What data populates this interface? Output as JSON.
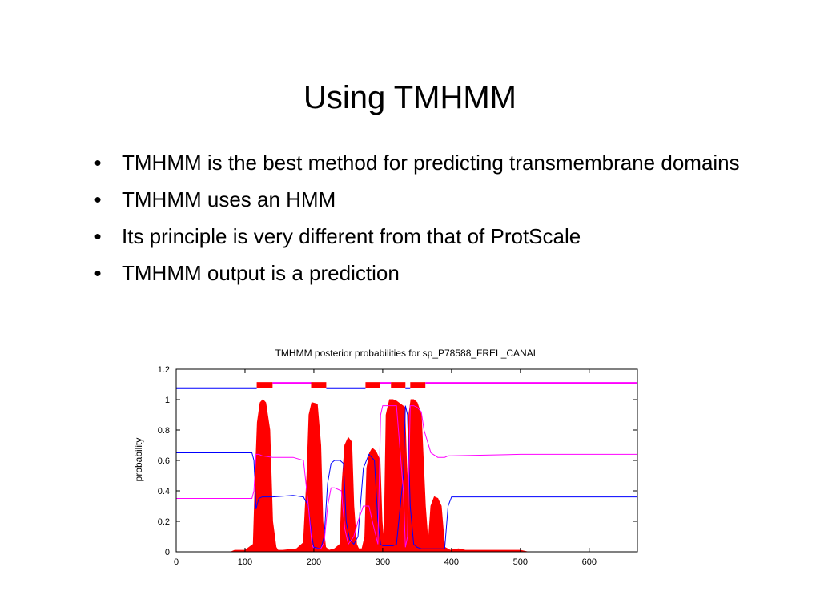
{
  "slide": {
    "title": "Using TMHMM",
    "bullets": [
      "TMHMM is the best method for predicting transmembrane domains",
      "TMHMM uses an HMM",
      "Its principle is very different from that of ProtScale",
      "TMHMM output is a prediction"
    ],
    "bullet_glyph": "•"
  },
  "chart_data": {
    "type": "line",
    "title": "TMHMM posterior probabilities for sp_P78588_FREL_CANAL",
    "xlabel": "",
    "ylabel": "probability",
    "xlim": [
      0,
      670
    ],
    "ylim": [
      0,
      1.2
    ],
    "xticks": [
      0,
      100,
      200,
      300,
      400,
      500,
      600
    ],
    "yticks": [
      0,
      0.2,
      0.4,
      0.6,
      0.8,
      1,
      1.2
    ],
    "grid": false,
    "colors": {
      "transmembrane": "#ff0000",
      "inside": "#0000ff",
      "outside": "#ff00ff",
      "frame": "#000000"
    },
    "series": [
      {
        "key": "transmembrane",
        "style": "filled",
        "x": [
          0,
          80,
          85,
          100,
          112,
          115,
          118,
          122,
          126,
          130,
          136,
          140,
          145,
          148,
          155,
          175,
          185,
          190,
          193,
          197,
          205,
          210,
          213,
          217,
          222,
          230,
          238,
          241,
          245,
          250,
          255,
          258,
          262,
          265,
          270,
          274,
          277,
          281,
          285,
          290,
          296,
          299,
          302,
          305,
          310,
          315,
          320,
          332,
          336,
          338,
          341,
          345,
          350,
          356,
          362,
          366,
          370,
          375,
          380,
          385,
          390,
          398,
          410,
          420,
          440,
          450,
          470,
          480,
          490,
          500,
          510,
          520,
          670
        ],
        "y": [
          0,
          0,
          0.01,
          0.01,
          0.05,
          0.5,
          0.85,
          0.98,
          1.0,
          0.98,
          0.8,
          0.2,
          0.03,
          0.01,
          0.01,
          0.02,
          0.06,
          0.5,
          0.9,
          0.98,
          0.97,
          0.7,
          0.2,
          0.03,
          0.01,
          0.02,
          0.05,
          0.45,
          0.7,
          0.75,
          0.72,
          0.3,
          0.05,
          0.02,
          0.02,
          0.1,
          0.55,
          0.65,
          0.68,
          0.66,
          0.6,
          0.2,
          0.05,
          0.9,
          1.0,
          1.0,
          0.99,
          0.95,
          0.4,
          0.9,
          1.0,
          1.0,
          0.98,
          0.9,
          0.3,
          0.05,
          0.3,
          0.36,
          0.35,
          0.3,
          0.03,
          0.01,
          0.02,
          0.01,
          0.01,
          0.01,
          0.01,
          0.01,
          0.01,
          0.01,
          0.0,
          0.0,
          0.0
        ]
      },
      {
        "key": "inside",
        "style": "line",
        "x": [
          0,
          110,
          113,
          116,
          120,
          125,
          140,
          170,
          185,
          192,
          197,
          200,
          210,
          215,
          220,
          225,
          230,
          238,
          243,
          247,
          252,
          258,
          264,
          272,
          280,
          284,
          288,
          293,
          297,
          300,
          305,
          315,
          320,
          330,
          333,
          336,
          340,
          345,
          350,
          356,
          362,
          370,
          380,
          390,
          395,
          400,
          670
        ],
        "y": [
          0.65,
          0.65,
          0.6,
          0.28,
          0.35,
          0.36,
          0.36,
          0.37,
          0.36,
          0.3,
          0.1,
          0.03,
          0.02,
          0.1,
          0.45,
          0.58,
          0.6,
          0.6,
          0.58,
          0.2,
          0.08,
          0.05,
          0.1,
          0.55,
          0.64,
          0.62,
          0.6,
          0.2,
          0.05,
          0.04,
          0.04,
          0.04,
          0.05,
          0.5,
          0.96,
          0.9,
          0.3,
          0.05,
          0.03,
          0.02,
          0.02,
          0.02,
          0.02,
          0.02,
          0.3,
          0.36,
          0.36
        ]
      },
      {
        "key": "outside",
        "style": "line",
        "x": [
          0,
          110,
          113,
          116,
          120,
          125,
          140,
          170,
          185,
          192,
          197,
          200,
          210,
          215,
          220,
          225,
          230,
          240,
          245,
          250,
          258,
          264,
          272,
          280,
          285,
          293,
          297,
          300,
          305,
          315,
          320,
          330,
          333,
          336,
          340,
          345,
          350,
          356,
          360,
          370,
          380,
          385,
          390,
          395,
          400,
          500,
          670
        ],
        "y": [
          0.35,
          0.35,
          0.4,
          0.64,
          0.64,
          0.63,
          0.62,
          0.62,
          0.6,
          0.3,
          0.05,
          0.02,
          0.02,
          0.06,
          0.3,
          0.42,
          0.42,
          0.4,
          0.15,
          0.05,
          0.1,
          0.2,
          0.3,
          0.3,
          0.2,
          0.05,
          0.9,
          0.96,
          0.96,
          0.96,
          0.96,
          0.4,
          0.03,
          0.1,
          0.96,
          0.96,
          0.95,
          0.92,
          0.8,
          0.65,
          0.62,
          0.62,
          0.62,
          0.63,
          0.63,
          0.64,
          0.64
        ]
      }
    ],
    "topology": [
      {
        "region": "inside",
        "x": [
          0,
          117
        ]
      },
      {
        "region": "transmembrane",
        "x": [
          117,
          140
        ]
      },
      {
        "region": "outside",
        "x": [
          140,
          196
        ]
      },
      {
        "region": "transmembrane",
        "x": [
          196,
          218
        ]
      },
      {
        "region": "inside",
        "x": [
          218,
          275
        ]
      },
      {
        "region": "transmembrane",
        "x": [
          275,
          296
        ]
      },
      {
        "region": "outside",
        "x": [
          296,
          312
        ]
      },
      {
        "region": "transmembrane",
        "x": [
          312,
          333
        ]
      },
      {
        "region": "inside",
        "x": [
          333,
          340
        ]
      },
      {
        "region": "transmembrane",
        "x": [
          340,
          362
        ]
      },
      {
        "region": "outside",
        "x": [
          362,
          670
        ]
      }
    ]
  }
}
